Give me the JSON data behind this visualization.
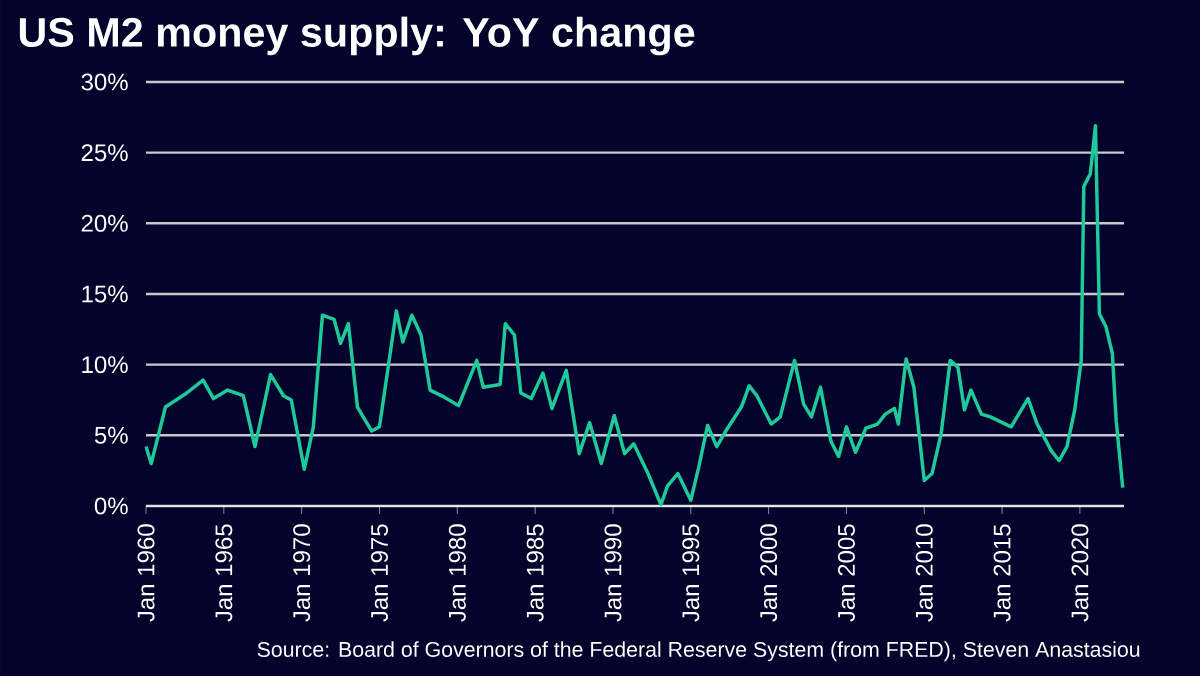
{
  "chart_data": {
    "type": "line",
    "title": "US M2 money supply: YoY change",
    "annotations": [
      "Source: Board of Governors of the Federal Reserve System (from FRED), Steven Anastasiou"
    ],
    "x": [
      "1960-01",
      "1960-05",
      "1961-04",
      "1962-07",
      "1963-09",
      "1964-05",
      "1965-04",
      "1966-04",
      "1967-01",
      "1968-01",
      "1968-11",
      "1969-05",
      "1970-03",
      "1970-10",
      "1971-05",
      "1972-02",
      "1972-07",
      "1973-01",
      "1973-08",
      "1974-07",
      "1975-01",
      "1976-02",
      "1976-07",
      "1977-02",
      "1977-09",
      "1978-04",
      "1979-03",
      "1980-02",
      "1981-04",
      "1981-09",
      "1982-10",
      "1983-02",
      "1983-09",
      "1984-02",
      "1984-10",
      "1985-07",
      "1986-02",
      "1987-01",
      "1987-11",
      "1988-07",
      "1989-04",
      "1990-02",
      "1990-10",
      "1991-05",
      "1992-04",
      "1993-02",
      "1993-07",
      "1994-03",
      "1995-01",
      "1995-07",
      "1996-02",
      "1996-09",
      "1997-04",
      "1998-04",
      "1998-10",
      "1999-04",
      "2000-03",
      "2000-10",
      "2001-09",
      "2002-04",
      "2002-10",
      "2003-05",
      "2004-01",
      "2004-07",
      "2005-01",
      "2005-08",
      "2006-04",
      "2007-01",
      "2007-07",
      "2008-02",
      "2008-05",
      "2008-11",
      "2009-05",
      "2010-01",
      "2010-07",
      "2011-02",
      "2011-09",
      "2012-03",
      "2012-08",
      "2013-01",
      "2013-09",
      "2014-04",
      "2015-08",
      "2016-09",
      "2017-04",
      "2018-03",
      "2018-09",
      "2019-03",
      "2019-09",
      "2020-02",
      "2020-04",
      "2020-09",
      "2021-01",
      "2021-04",
      "2021-09",
      "2022-02",
      "2022-05",
      "2022-10"
    ],
    "series": [
      {
        "color": "#1ec99a",
        "values": [
          4.2,
          3.0,
          7.0,
          7.9,
          8.9,
          7.6,
          8.2,
          7.8,
          4.2,
          9.3,
          7.8,
          7.5,
          2.6,
          5.6,
          13.5,
          13.2,
          11.5,
          12.9,
          7.0,
          5.3,
          5.6,
          13.8,
          11.6,
          13.5,
          12.1,
          8.2,
          7.7,
          7.1,
          10.3,
          8.4,
          8.6,
          12.9,
          12.1,
          8.0,
          7.6,
          9.4,
          6.9,
          9.6,
          3.7,
          5.9,
          3.0,
          6.4,
          3.7,
          4.4,
          2.3,
          0.1,
          1.4,
          2.3,
          0.4,
          2.7,
          5.7,
          4.2,
          5.3,
          7.0,
          8.5,
          7.8,
          5.8,
          6.3,
          10.3,
          7.2,
          6.3,
          8.4,
          4.6,
          3.5,
          5.6,
          3.8,
          5.5,
          5.8,
          6.5,
          6.9,
          5.8,
          10.4,
          8.4,
          1.8,
          2.3,
          5.1,
          10.3,
          9.8,
          6.8,
          8.2,
          6.5,
          6.3,
          5.6,
          7.6,
          5.8,
          3.9,
          3.2,
          4.2,
          6.8,
          10.3,
          22.6,
          23.5,
          26.9,
          13.6,
          12.7,
          10.8,
          6.0,
          1.3
        ]
      }
    ],
    "xlim": [
      "1960-01",
      "2022-11"
    ],
    "xticks": [
      {
        "value": "1960-01",
        "label": "Jan 1960"
      },
      {
        "value": "1965-01",
        "label": "Jan 1965"
      },
      {
        "value": "1970-01",
        "label": "Jan 1970"
      },
      {
        "value": "1975-01",
        "label": "Jan 1975"
      },
      {
        "value": "1980-01",
        "label": "Jan 1980"
      },
      {
        "value": "1985-01",
        "label": "Jan 1985"
      },
      {
        "value": "1990-01",
        "label": "Jan 1990"
      },
      {
        "value": "1995-01",
        "label": "Jan 1995"
      },
      {
        "value": "2000-01",
        "label": "Jan 2000"
      },
      {
        "value": "2005-01",
        "label": "Jan 2005"
      },
      {
        "value": "2010-01",
        "label": "Jan 2010"
      },
      {
        "value": "2015-01",
        "label": "Jan 2015"
      },
      {
        "value": "2020-01",
        "label": "Jan 2020"
      }
    ],
    "ylim": [
      0,
      30
    ],
    "yticks": [
      {
        "value": 0,
        "label": "0%"
      },
      {
        "value": 5,
        "label": "5%"
      },
      {
        "value": 10,
        "label": "10%"
      },
      {
        "value": 15,
        "label": "15%"
      },
      {
        "value": 20,
        "label": "20%"
      },
      {
        "value": 25,
        "label": "25%"
      },
      {
        "value": 30,
        "label": "30%"
      }
    ],
    "grid": "y",
    "marker": "none",
    "line_style": "solid"
  }
}
